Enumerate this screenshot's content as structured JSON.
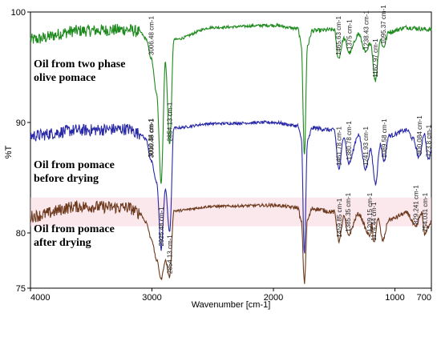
{
  "chart_data": {
    "type": "line",
    "title": "",
    "xlabel": "Wavenumber [cm-1]",
    "ylabel": "%T",
    "xlim": [
      4000,
      700
    ],
    "ylim": [
      75,
      100
    ],
    "x_ticks": [
      4000,
      3000,
      2000,
      1000,
      700
    ],
    "y_ticks": [
      100,
      90,
      80,
      75
    ],
    "x_tick_labels": [
      "4000",
      "3000",
      "2000",
      "1000",
      "700"
    ],
    "y_tick_labels": [
      "100",
      "90",
      "80",
      "75"
    ],
    "grid": false,
    "series": [
      {
        "name": "Oil from two phase olive pomace",
        "label_lines": [
          "Oil from two phase",
          "olive pomace"
        ],
        "color": "#1e8a1e",
        "keypoints": [
          [
            4000,
            97.5
          ],
          [
            3600,
            98.3
          ],
          [
            3200,
            98.4
          ],
          [
            3100,
            98.2
          ],
          [
            3050,
            97.6
          ],
          [
            3006,
            95.8
          ],
          [
            2960,
            92.5
          ],
          [
            2924,
            84.5
          ],
          [
            2890,
            95.5
          ],
          [
            2854,
            88.0
          ],
          [
            2820,
            97.5
          ],
          [
            2500,
            98.6
          ],
          [
            2000,
            98.8
          ],
          [
            1800,
            98.5
          ],
          [
            1770,
            97.0
          ],
          [
            1745,
            87.0
          ],
          [
            1720,
            97.0
          ],
          [
            1680,
            98.3
          ],
          [
            1500,
            98.4
          ],
          [
            1465,
            95.8
          ],
          [
            1420,
            97.6
          ],
          [
            1375,
            96.3
          ],
          [
            1300,
            98.0
          ],
          [
            1238,
            96.3
          ],
          [
            1200,
            97.2
          ],
          [
            1162,
            93.8
          ],
          [
            1120,
            97.5
          ],
          [
            1095,
            96.8
          ],
          [
            1050,
            98.2
          ],
          [
            900,
            98.6
          ],
          [
            700,
            98.4
          ]
        ],
        "annotations": [
          {
            "label": "3006.48 cm-1",
            "x": 3006
          },
          {
            "label": "2854.13 cm-1",
            "x": 2854
          },
          {
            "label": "1465.63 cm-1",
            "x": 1465
          },
          {
            "label": "1375 cm-1",
            "x": 1375
          },
          {
            "label": "1238.43 cm-1",
            "x": 1238
          },
          {
            "label": "1162.97 cm-1",
            "x": 1162
          },
          {
            "label": "1095.37 cm-1",
            "x": 1095
          }
        ]
      },
      {
        "name": "Oil from pomace before drying",
        "label_lines": [
          "Oil from pomace",
          "before drying"
        ],
        "color": "#2a2aa8",
        "keypoints": [
          [
            4000,
            88.8
          ],
          [
            3600,
            89.3
          ],
          [
            3200,
            89.4
          ],
          [
            3100,
            89.0
          ],
          [
            3050,
            88.5
          ],
          [
            3006,
            86.5
          ],
          [
            2960,
            84.5
          ],
          [
            2924,
            78.5
          ],
          [
            2890,
            84.0
          ],
          [
            2854,
            80.0
          ],
          [
            2820,
            89.5
          ],
          [
            2500,
            89.9
          ],
          [
            2000,
            90.0
          ],
          [
            1800,
            89.7
          ],
          [
            1770,
            88.5
          ],
          [
            1745,
            78.0
          ],
          [
            1720,
            88.3
          ],
          [
            1680,
            89.5
          ],
          [
            1500,
            89.3
          ],
          [
            1461,
            85.8
          ],
          [
            1420,
            88.8
          ],
          [
            1380,
            86.3
          ],
          [
            1300,
            88.9
          ],
          [
            1241,
            85.8
          ],
          [
            1200,
            87.5
          ],
          [
            1160,
            84.5
          ],
          [
            1120,
            88.0
          ],
          [
            1089,
            86.5
          ],
          [
            1050,
            88.8
          ],
          [
            900,
            89.3
          ],
          [
            850,
            88.5
          ],
          [
            800,
            86.8
          ],
          [
            760,
            89.0
          ],
          [
            723,
            86.6
          ],
          [
            700,
            87.5
          ]
        ],
        "annotations": [
          {
            "label": "3010.34 cm-1",
            "x": 3010
          },
          {
            "label": "3006.48 cm-1",
            "x": 3006
          },
          {
            "label": "2925.48 cm-1",
            "x": 2925
          },
          {
            "label": "1461.78 cm-1",
            "x": 1461
          },
          {
            "label": "1380.78 cm-1",
            "x": 1380
          },
          {
            "label": "1241.93 cm-1",
            "x": 1241
          },
          {
            "label": "1089.58 cm-1",
            "x": 1089
          },
          {
            "label": "800.084 cm-1",
            "x": 800
          },
          {
            "label": "723.8 cm-1",
            "x": 723
          }
        ]
      },
      {
        "name": "Oil from pomace after drying",
        "label_lines": [
          "Oil from pomace",
          "after drying"
        ],
        "color": "#6e3a1e",
        "keypoints": [
          [
            4000,
            81.5
          ],
          [
            3600,
            82.4
          ],
          [
            3200,
            82.3
          ],
          [
            3100,
            81.8
          ],
          [
            3050,
            81.0
          ],
          [
            3006,
            79.5
          ],
          [
            2960,
            77.5
          ],
          [
            2924,
            75.8
          ],
          [
            2890,
            77.5
          ],
          [
            2854,
            76.0
          ],
          [
            2820,
            82.0
          ],
          [
            2500,
            82.4
          ],
          [
            2000,
            82.5
          ],
          [
            1800,
            82.3
          ],
          [
            1770,
            81.0
          ],
          [
            1745,
            75.5
          ],
          [
            1720,
            81.2
          ],
          [
            1680,
            82.2
          ],
          [
            1500,
            81.9
          ],
          [
            1459,
            79.3
          ],
          [
            1420,
            81.5
          ],
          [
            1385,
            79.8
          ],
          [
            1300,
            81.7
          ],
          [
            1209,
            79.8
          ],
          [
            1190,
            80.8
          ],
          [
            1174,
            79.0
          ],
          [
            1140,
            81.3
          ],
          [
            1100,
            79.3
          ],
          [
            1050,
            81.2
          ],
          [
            900,
            81.8
          ],
          [
            829,
            80.5
          ],
          [
            780,
            81.8
          ],
          [
            754,
            79.8
          ],
          [
            730,
            80.5
          ],
          [
            700,
            81.0
          ]
        ],
        "annotations": [
          {
            "label": "2854.13 cm-1",
            "x": 2854
          },
          {
            "label": "1459.85 cm-1",
            "x": 1459
          },
          {
            "label": "1385.35 cm-1",
            "x": 1385
          },
          {
            "label": "1209.15 cm-1",
            "x": 1209
          },
          {
            "label": "1174.44 cm-1",
            "x": 1174
          },
          {
            "label": "829.241 cm-1",
            "x": 829
          },
          {
            "label": "754.031 cm-1",
            "x": 754
          }
        ]
      }
    ]
  }
}
